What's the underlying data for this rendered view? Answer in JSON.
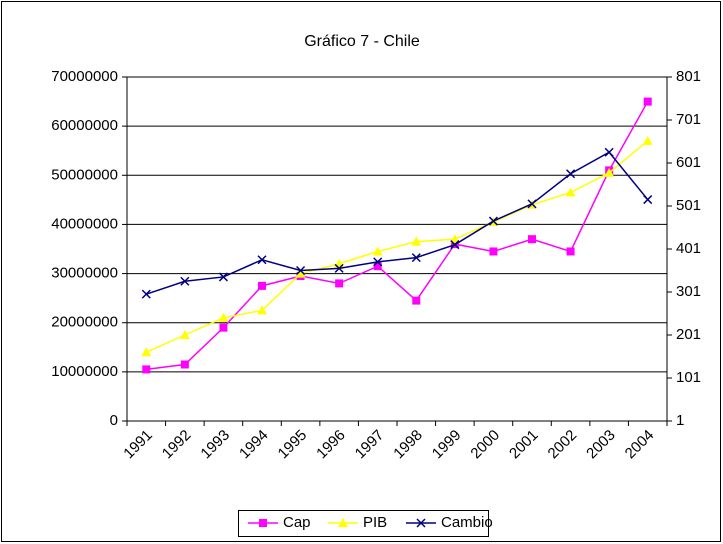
{
  "chart_data": {
    "type": "line",
    "title": "Gráfico 7 - Chile",
    "categories": [
      "1991",
      "1992",
      "1993",
      "1994",
      "1995",
      "1996",
      "1997",
      "1998",
      "1999",
      "2000",
      "2001",
      "2002",
      "2003",
      "2004"
    ],
    "ylim": [
      0,
      70000000
    ],
    "yticks": [
      0,
      10000000,
      20000000,
      30000000,
      40000000,
      50000000,
      60000000,
      70000000
    ],
    "y2lim": [
      1,
      801
    ],
    "y2ticks": [
      1,
      101,
      201,
      301,
      401,
      501,
      601,
      701,
      801
    ],
    "grid": true,
    "legend": "bottom",
    "series": [
      {
        "name": "Cap",
        "color": "#ff00ff",
        "marker": "square",
        "values": [
          10500000,
          11500000,
          19000000,
          27500000,
          29500000,
          28000000,
          31500000,
          24500000,
          36000000,
          34500000,
          37000000,
          34500000,
          51000000,
          65000000
        ]
      },
      {
        "name": "PIB",
        "color": "#ffff00",
        "marker": "triangle",
        "values": [
          14000000,
          17500000,
          21000000,
          22500000,
          30000000,
          32000000,
          34500000,
          36500000,
          37000000,
          40500000,
          44000000,
          46500000,
          50500000,
          57000000
        ]
      },
      {
        "name": "Cambio",
        "color": "#000080",
        "marker": "x",
        "axis": "y2",
        "values": [
          296,
          326,
          336,
          376,
          351,
          356,
          371,
          381,
          411,
          466,
          506,
          576,
          626,
          516
        ]
      }
    ]
  }
}
